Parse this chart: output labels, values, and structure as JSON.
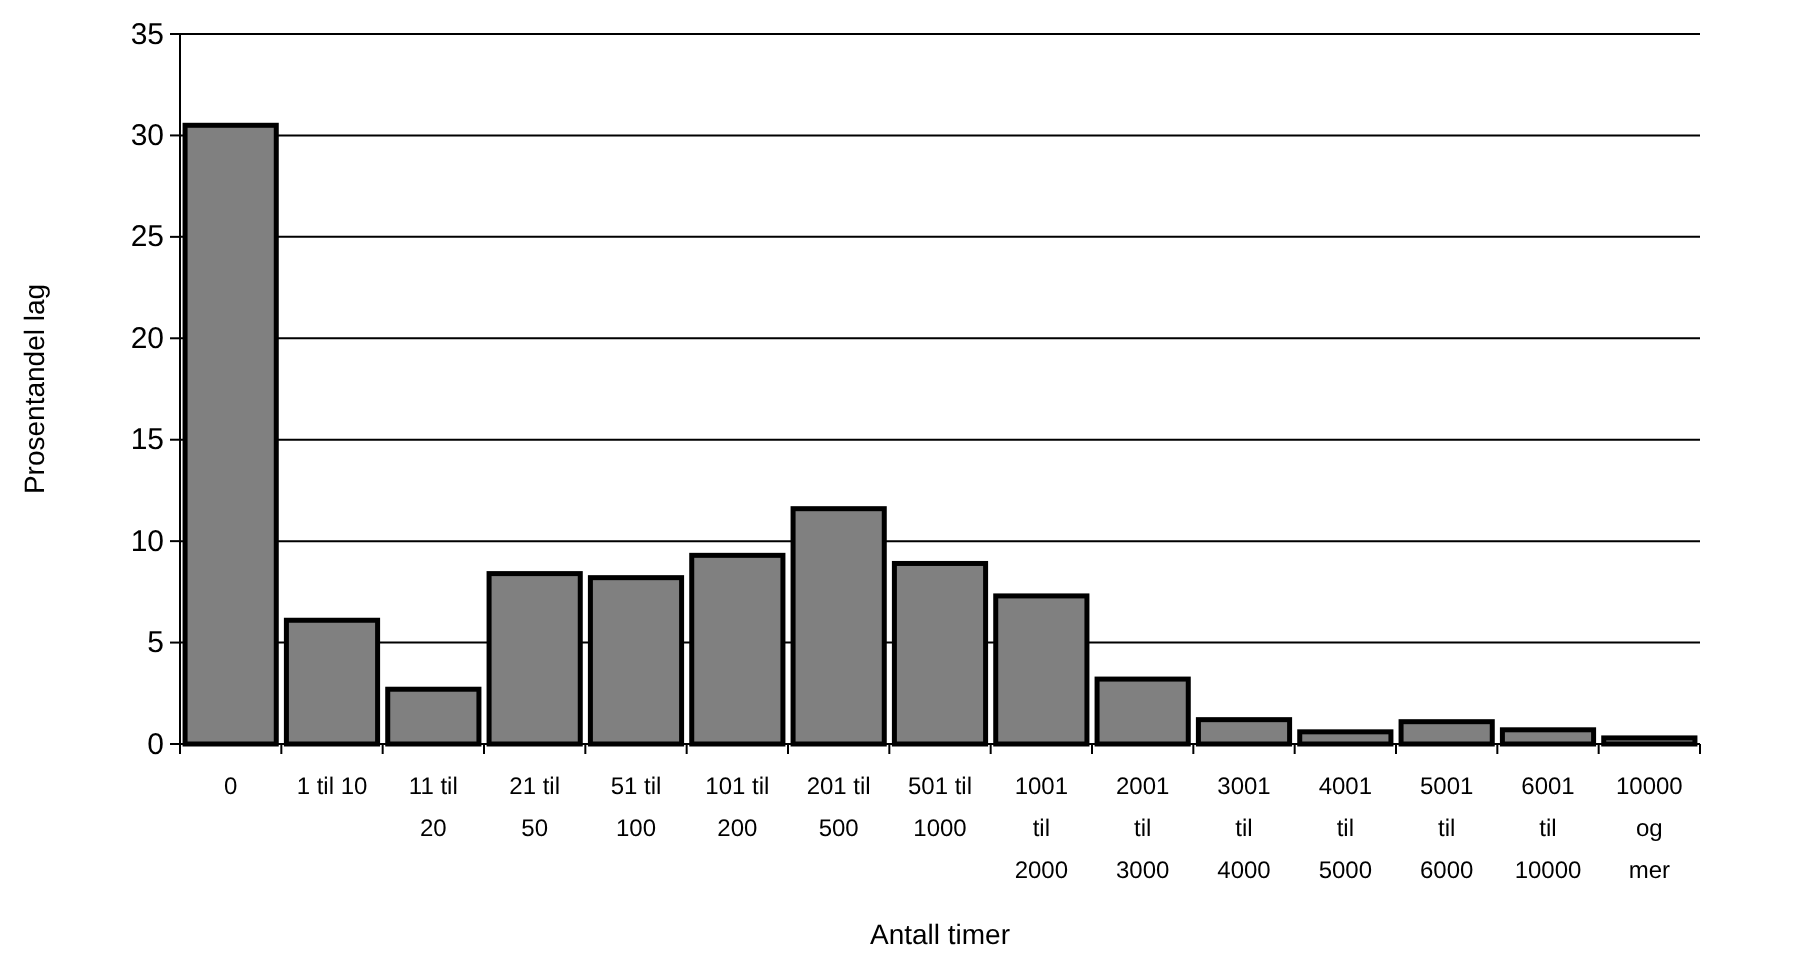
{
  "chart_data": {
    "type": "bar",
    "xlabel": "Antall timer",
    "ylabel": "Prosentandel lag",
    "categories": [
      "0",
      "1 til 10",
      "11 til 20",
      "21 til 50",
      "51 til 100",
      "101 til 200",
      "201 til 500",
      "501 til 1000",
      "1001 til 2000",
      "2001 til 3000",
      "3001 til 4000",
      "4001 til 5000",
      "5001 til 6000",
      "6001 til 10000",
      "10000 og mer"
    ],
    "values": [
      30.5,
      6.1,
      2.7,
      8.4,
      8.2,
      9.3,
      11.6,
      8.9,
      7.3,
      3.2,
      1.2,
      0.6,
      1.1,
      0.7,
      0.3
    ],
    "color": "#808080",
    "ylim": [
      0,
      35
    ],
    "yticks": [
      0,
      5,
      10,
      15,
      20,
      25,
      30,
      35
    ],
    "grid": "y"
  }
}
